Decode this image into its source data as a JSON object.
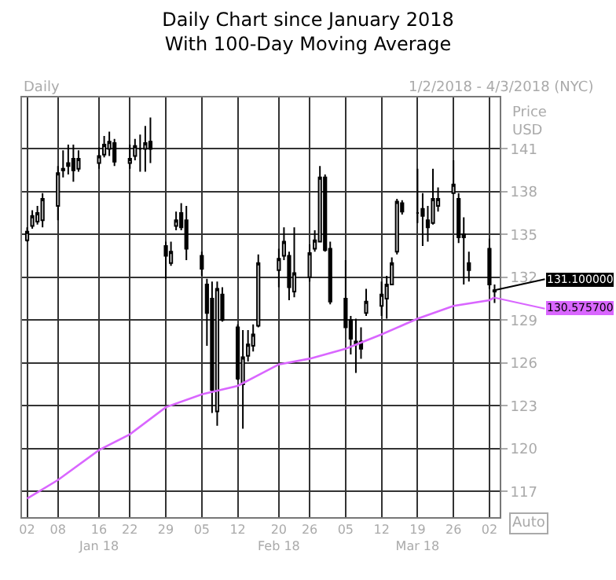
{
  "chart_data": {
    "type": "candlestick",
    "title": "Daily Chart since January 2018",
    "subtitle": "With 100-Day Moving Average",
    "ylabel": "Price USD",
    "annotations": [
      "Daily",
      "1/2/2018 - 4/3/2018 (NYC)",
      "Auto",
      {
        "text": "131.100000",
        "x": "2018-04-03",
        "y": 131.1
      },
      {
        "text": "130.575700",
        "x": "2018-04-03",
        "y": 130.5757
      }
    ],
    "x": [
      "2018-01-02",
      "2018-01-03",
      "2018-01-04",
      "2018-01-05",
      "2018-01-08",
      "2018-01-09",
      "2018-01-10",
      "2018-01-11",
      "2018-01-12",
      "2018-01-16",
      "2018-01-17",
      "2018-01-18",
      "2018-01-19",
      "2018-01-22",
      "2018-01-23",
      "2018-01-24",
      "2018-01-25",
      "2018-01-26",
      "2018-01-29",
      "2018-01-30",
      "2018-01-31",
      "2018-02-01",
      "2018-02-02",
      "2018-02-05",
      "2018-02-06",
      "2018-02-07",
      "2018-02-08",
      "2018-02-09",
      "2018-02-12",
      "2018-02-13",
      "2018-02-14",
      "2018-02-15",
      "2018-02-16",
      "2018-02-20",
      "2018-02-21",
      "2018-02-22",
      "2018-02-23",
      "2018-02-26",
      "2018-02-27",
      "2018-02-28",
      "2018-03-01",
      "2018-03-02",
      "2018-03-05",
      "2018-03-06",
      "2018-03-07",
      "2018-03-08",
      "2018-03-09",
      "2018-03-12",
      "2018-03-13",
      "2018-03-14",
      "2018-03-15",
      "2018-03-16",
      "2018-03-19",
      "2018-03-20",
      "2018-03-21",
      "2018-03-22",
      "2018-03-23",
      "2018-03-26",
      "2018-03-27",
      "2018-03-28",
      "2018-03-29",
      "2018-04-02",
      "2018-04-03"
    ],
    "ohlc": [
      [
        134.6,
        135.5,
        134.5,
        135.2
      ],
      [
        135.6,
        136.7,
        135.4,
        136.3
      ],
      [
        135.9,
        137.0,
        135.7,
        136.5
      ],
      [
        136.0,
        137.9,
        135.5,
        137.5
      ],
      [
        137.0,
        139.8,
        136.0,
        139.3
      ],
      [
        139.5,
        140.9,
        139.0,
        139.6
      ],
      [
        139.8,
        141.3,
        139.2,
        140.0
      ],
      [
        140.3,
        141.3,
        138.7,
        139.5
      ],
      [
        139.6,
        140.9,
        139.4,
        140.3
      ],
      [
        140.0,
        141.1,
        139.6,
        140.5
      ],
      [
        140.6,
        141.9,
        140.4,
        141.3
      ],
      [
        141.0,
        142.2,
        140.5,
        141.5
      ],
      [
        141.4,
        141.7,
        139.8,
        140.1
      ],
      [
        140.0,
        141.3,
        139.6,
        140.3
      ],
      [
        140.5,
        141.7,
        140.2,
        141.2
      ],
      [
        141.0,
        142.0,
        139.4,
        141.0
      ],
      [
        141.0,
        142.6,
        139.4,
        141.4
      ],
      [
        141.5,
        143.2,
        140.0,
        141.0
      ],
      [
        134.2,
        134.5,
        131.9,
        133.5
      ],
      [
        133.0,
        134.5,
        132.8,
        133.8
      ],
      [
        135.6,
        136.6,
        135.3,
        136.0
      ],
      [
        136.5,
        137.2,
        135.3,
        135.5
      ],
      [
        136.0,
        137.0,
        133.2,
        134.0
      ],
      [
        133.5,
        133.8,
        132.1,
        132.6
      ],
      [
        131.5,
        131.9,
        127.2,
        129.5
      ],
      [
        130.5,
        131.7,
        122.5,
        124.1
      ],
      [
        122.6,
        131.7,
        121.6,
        131.2
      ],
      [
        130.8,
        131.3,
        128.9,
        129.0
      ],
      [
        128.5,
        128.7,
        124.8,
        124.9
      ],
      [
        124.5,
        128.3,
        121.4,
        126.4
      ],
      [
        126.5,
        128.3,
        126.1,
        127.3
      ],
      [
        127.2,
        128.7,
        126.8,
        128.0
      ],
      [
        128.6,
        133.6,
        128.5,
        133.0
      ],
      [
        132.5,
        134.0,
        131.3,
        133.3
      ],
      [
        133.5,
        135.5,
        133.2,
        134.5
      ],
      [
        133.5,
        133.8,
        130.4,
        131.3
      ],
      [
        131.0,
        135.5,
        130.6,
        132.3
      ],
      [
        132.0,
        134.3,
        131.7,
        133.7
      ],
      [
        134.0,
        135.3,
        133.8,
        134.6
      ],
      [
        134.5,
        139.8,
        134.5,
        139.0
      ],
      [
        139.0,
        139.2,
        133.8,
        133.9
      ],
      [
        134.0,
        134.5,
        130.1,
        130.3
      ],
      [
        130.5,
        133.2,
        128.5,
        128.5
      ],
      [
        129.0,
        129.3,
        126.6,
        127.7
      ],
      [
        127.5,
        129.1,
        125.3,
        127.3
      ],
      [
        127.5,
        128.5,
        126.3,
        127.0
      ],
      [
        129.5,
        131.2,
        129.3,
        130.3
      ],
      [
        130.0,
        131.7,
        129.3,
        130.8
      ],
      [
        130.5,
        132.1,
        129.1,
        131.5
      ],
      [
        131.5,
        133.4,
        131.5,
        133.0
      ],
      [
        133.8,
        137.5,
        133.6,
        137.3
      ],
      [
        137.2,
        137.4,
        136.4,
        136.6
      ],
      [
        136.5,
        139.6,
        135.8,
        136.5
      ],
      [
        136.8,
        137.9,
        134.2,
        136.3
      ],
      [
        136.0,
        137.0,
        134.5,
        135.5
      ],
      [
        135.8,
        139.6,
        135.7,
        137.5
      ],
      [
        137.0,
        138.3,
        136.6,
        137.5
      ],
      [
        137.9,
        140.2,
        137.9,
        138.5
      ],
      [
        137.5,
        137.9,
        134.4,
        134.8
      ],
      [
        134.8,
        136.2,
        131.5,
        135.0
      ],
      [
        133.0,
        133.8,
        131.7,
        132.5
      ],
      [
        134.0,
        134.7,
        131.2,
        131.5
      ],
      [
        131.0,
        131.5,
        130.2,
        131.1
      ]
    ],
    "color": "#000000",
    "series": [
      {
        "type": "line",
        "color": "#d966ff",
        "x": [
          "2018-01-02",
          "2018-01-08",
          "2018-01-16",
          "2018-01-22",
          "2018-01-29",
          "2018-02-05",
          "2018-02-12",
          "2018-02-20",
          "2018-02-26",
          "2018-03-05",
          "2018-03-12",
          "2018-03-19",
          "2018-03-26",
          "2018-04-02",
          "2018-04-03"
        ],
        "values": [
          116.5,
          117.8,
          119.9,
          121.0,
          122.9,
          123.8,
          124.4,
          125.9,
          126.3,
          127.0,
          128.0,
          129.1,
          130.0,
          130.4,
          130.6
        ]
      }
    ],
    "xlim": [
      "2018-01-01",
      "2018-04-04"
    ],
    "xticks": [
      {
        "value": "2018-01-02",
        "label": "02"
      },
      {
        "value": "2018-01-08",
        "label": "08"
      },
      {
        "value": "2018-01-16",
        "label": "16\nJan 18"
      },
      {
        "value": "2018-01-22",
        "label": "22"
      },
      {
        "value": "2018-01-29",
        "label": "29"
      },
      {
        "value": "2018-02-05",
        "label": "05"
      },
      {
        "value": "2018-02-12",
        "label": "12"
      },
      {
        "value": "2018-02-20",
        "label": "20\nFeb 18"
      },
      {
        "value": "2018-02-26",
        "label": "26"
      },
      {
        "value": "2018-03-05",
        "label": "05"
      },
      {
        "value": "2018-03-12",
        "label": "12"
      },
      {
        "value": "2018-03-19",
        "label": "19\nMar 18"
      },
      {
        "value": "2018-03-26",
        "label": "26"
      },
      {
        "value": "2018-04-02",
        "label": "02"
      }
    ],
    "ylim": [
      115.2,
      144.6
    ],
    "yticks": [
      117,
      120,
      123,
      126,
      129,
      132,
      135,
      138,
      141
    ],
    "grid": true
  }
}
